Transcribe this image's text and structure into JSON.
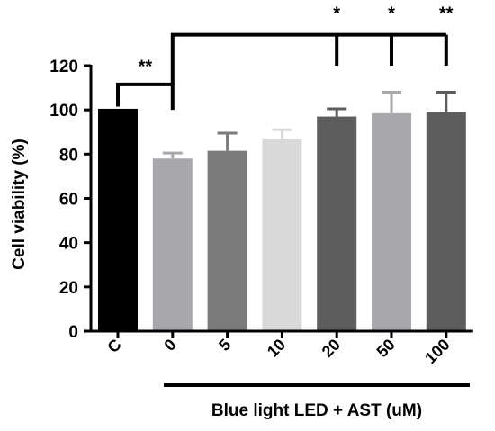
{
  "chart_data": {
    "type": "bar",
    "ylabel": "Cell viability (%)",
    "xlabel": "Blue light LED + AST (uM)",
    "ylim": [
      0,
      120
    ],
    "yticks": [
      0,
      20,
      40,
      60,
      80,
      100,
      120
    ],
    "categories": [
      "C",
      "0",
      "5",
      "10",
      "20",
      "50",
      "100"
    ],
    "values": [
      100.5,
      78,
      81.5,
      87,
      97,
      98.5,
      99
    ],
    "errors": [
      0,
      2.5,
      8,
      4,
      3.5,
      9.5,
      9
    ],
    "bar_colors": [
      "#000000",
      "#a8a8ac",
      "#7b7b7b",
      "#d9d9d9",
      "#5d5d5d",
      "#a8a8ac",
      "#5d5d5d"
    ],
    "grid": false,
    "significance": [
      {
        "label": "**",
        "from": "C",
        "to": "0"
      },
      {
        "label": "*",
        "from": "0",
        "to": "20"
      },
      {
        "label": "*",
        "from": "0",
        "to": "50"
      },
      {
        "label": "**",
        "from": "0",
        "to": "100"
      }
    ],
    "group_label_range": [
      "0",
      "100"
    ]
  }
}
